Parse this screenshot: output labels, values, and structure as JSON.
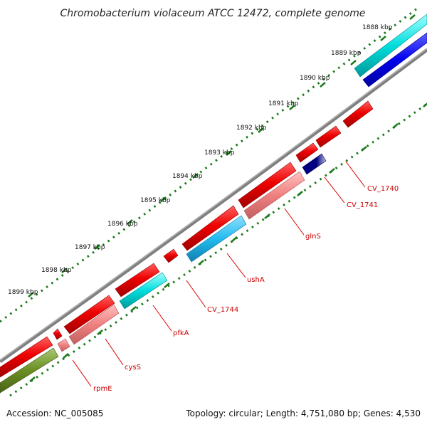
{
  "title": "Chromobacterium violaceum ATCC 12472, complete genome",
  "footer": {
    "accession": "Accession: NC_005085",
    "summary": "Topology: circular; Length: 4,751,080 bp; Genes: 4,530"
  },
  "colors": {
    "backbone": "#808080",
    "forward_gene": "#ee0000",
    "reverse_gene_light": "#f08080",
    "ticks": "#1a7a1a",
    "label": "#cc0000",
    "cyan": "#00cccc",
    "sky": "#22bbee",
    "blue": "#0000ee",
    "navy": "#000080",
    "olive": "#6b8e23"
  },
  "scale_ticks": [
    "1888 kbp",
    "1889 kbp",
    "1890 kbp",
    "1891 kbp",
    "1892 kbp",
    "1893 kbp",
    "1894 kbp",
    "1895 kbp",
    "1896 kbp",
    "1897 kbp",
    "1898 kbp",
    "1899 kbp"
  ],
  "gene_labels": [
    "CV_1740",
    "CV_1741",
    "glnS",
    "ushA",
    "CV_1744",
    "pfkA",
    "cysS",
    "rpmE"
  ]
}
